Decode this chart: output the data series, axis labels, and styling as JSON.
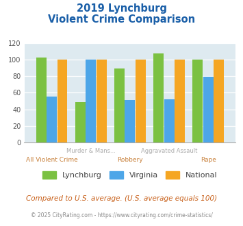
{
  "title_line1": "2019 Lynchburg",
  "title_line2": "Violent Crime Comparison",
  "categories": [
    "All Violent Crime",
    "Murder & Mans...",
    "Robbery",
    "Aggravated Assault",
    "Rape"
  ],
  "x_labels_line1": [
    "",
    "Murder & Mans...",
    "",
    "Aggravated Assault",
    ""
  ],
  "x_labels_line2": [
    "All Violent Crime",
    "",
    "Robbery",
    "",
    "Rape"
  ],
  "lynchburg": [
    102,
    49,
    89,
    107,
    100
  ],
  "virginia": [
    55,
    100,
    51,
    52,
    79
  ],
  "national": [
    100,
    100,
    100,
    100,
    100
  ],
  "bar_colors": {
    "lynchburg": "#7bc142",
    "virginia": "#4da6e8",
    "national": "#f5a623"
  },
  "ylim": [
    0,
    120
  ],
  "yticks": [
    0,
    20,
    40,
    60,
    80,
    100,
    120
  ],
  "background_color": "#deeaf0",
  "title_color": "#1a5fa8",
  "xlabel_color_line1": "#aaaaaa",
  "xlabel_color_line2": "#c8803a",
  "legend_labels": [
    "Lynchburg",
    "Virginia",
    "National"
  ],
  "footnote1": "Compared to U.S. average. (U.S. average equals 100)",
  "footnote2": "© 2025 CityRating.com - https://www.cityrating.com/crime-statistics/",
  "footnote1_color": "#c8601a",
  "footnote2_color": "#888888"
}
